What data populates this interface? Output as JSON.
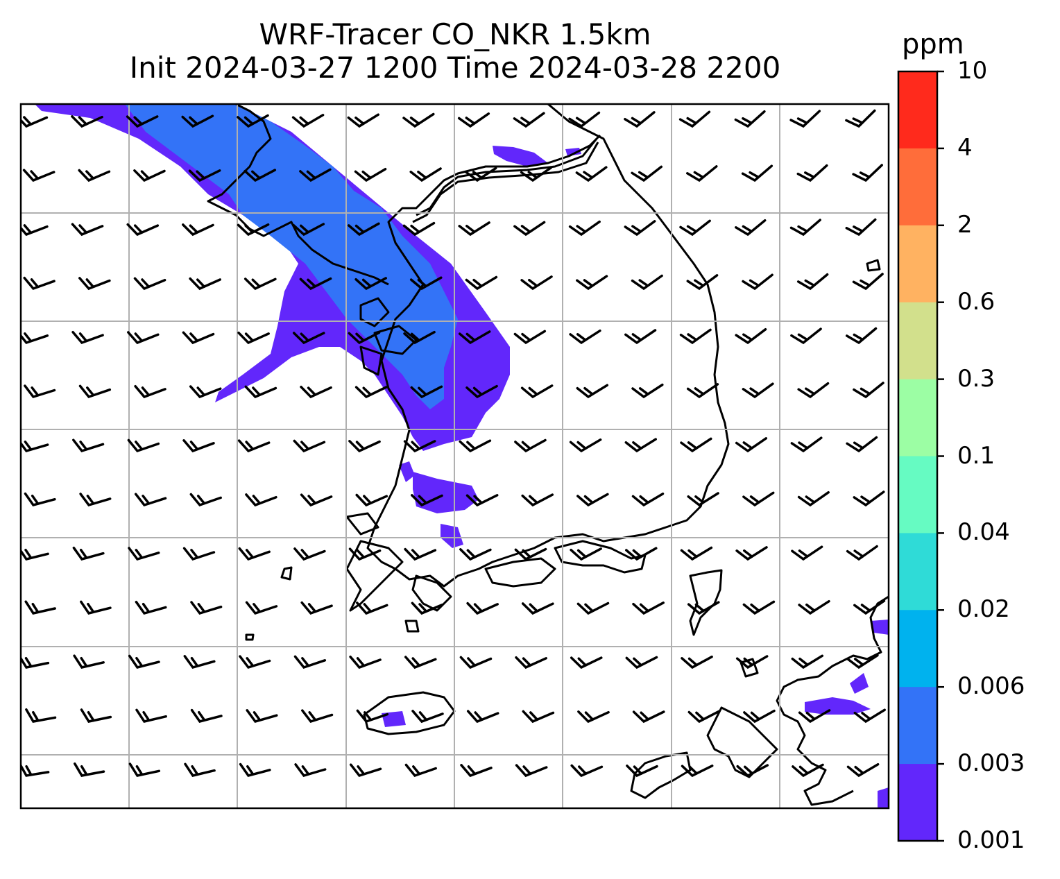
{
  "title": {
    "line1": "WRF-Tracer CO_NKR 1.5km",
    "line2": "Init 2024-03-27 1200 Time 2024-03-28 2200"
  },
  "colorbar": {
    "unit": "ppm",
    "ticks": [
      "10",
      "4",
      "2",
      "0.6",
      "0.3",
      "0.1",
      "0.04",
      "0.02",
      "0.006",
      "0.003",
      "0.001"
    ],
    "bin_colors": [
      "#ff2a1c",
      "#ff6d3a",
      "#ffb261",
      "#d2e08c",
      "#9cfea4",
      "#66fbc2",
      "#2fdbd7",
      "#00b2ee",
      "#3373f7",
      "#6227fb"
    ]
  },
  "map": {
    "gridline_color": "#b0b0b0",
    "coastline_color": "#000000",
    "wind_barbs": "black",
    "tracer_levels_present": [
      "0.001-0.003",
      "0.003-0.006"
    ]
  }
}
